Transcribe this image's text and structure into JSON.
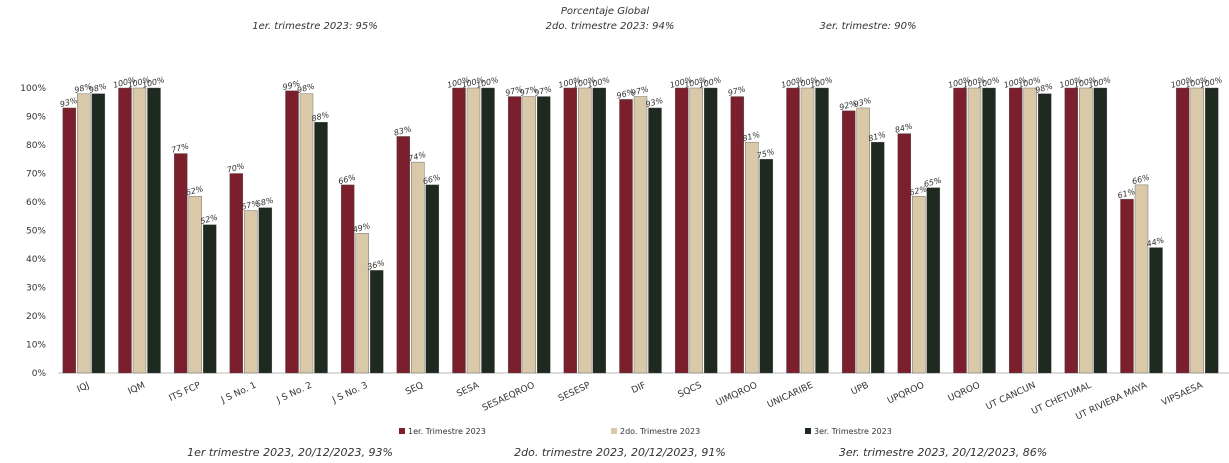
{
  "header": {
    "subtitle": "Porcentaje Global",
    "q1_summary": "1er. trimestre 2023: 95%",
    "q2_summary": "2do. trimestre 2023: 94%",
    "q3_summary": "3er. trimestre: 90%"
  },
  "footer": {
    "q1_note": "1er trimestre  2023,  20/12/2023, 93%",
    "q2_note": "2do. trimestre 2023, 20/12/2023, 91%",
    "q3_note": "3er. trimestre 2023, 20/12/2023, 86%"
  },
  "chart_data": {
    "type": "bar",
    "categories": [
      "IQJ",
      "IQM",
      "ITS FCP",
      "J S No. 1",
      "J S No. 2",
      "J S No. 3",
      "SEQ",
      "SESA",
      "SESAEQROO",
      "SESESP",
      "DIF",
      "SQCS",
      "UIMQROO",
      "UNICARIBE",
      "UPB",
      "UPQROO",
      "UQROO",
      "UT CANCUN",
      "UT CHETUMAL",
      "UT RIVIERA MAYA",
      "VIPSAESA"
    ],
    "series": [
      {
        "name": "1er. Trimestre 2023",
        "color": "#7a1f2b",
        "values": [
          93,
          100,
          77,
          70,
          99,
          66,
          83,
          100,
          97,
          100,
          96,
          100,
          97,
          100,
          92,
          84,
          100,
          100,
          100,
          61,
          100
        ],
        "labels": [
          "93%",
          "100%",
          "77%",
          "70%",
          "99%",
          "66%",
          "83%",
          "100%",
          "97%",
          "100%",
          "96%",
          "100%",
          "97%",
          "100%",
          "92%",
          "84%",
          "100%",
          "100%",
          "100%",
          "61%",
          "100%"
        ]
      },
      {
        "name": "2do. Trimestre 2023",
        "color": "#d9c9a8",
        "values": [
          98,
          100,
          62,
          57,
          98,
          49,
          74,
          100,
          97,
          100,
          97,
          100,
          81,
          100,
          93,
          62,
          100,
          100,
          100,
          66,
          100
        ],
        "labels": [
          "98%",
          "100%",
          "62%",
          "57%",
          "98%",
          "49%",
          "74%",
          "100%",
          "97%",
          "100%",
          "97%",
          "100%",
          "81%",
          "100%",
          "93%",
          "62%",
          "100%",
          "100%",
          "100%",
          "66%",
          "100%"
        ]
      },
      {
        "name": "3er. Trimestre 2023",
        "color": "#1e2a1f",
        "values": [
          98,
          100,
          52,
          58,
          88,
          36,
          66,
          100,
          97,
          100,
          93,
          100,
          75,
          100,
          81,
          65,
          100,
          98,
          100,
          44,
          100
        ],
        "labels": [
          "98%",
          "100%",
          "52%",
          "58%",
          "88%",
          "36%",
          "66%",
          "100%",
          "97%",
          "100%",
          "93%",
          "100%",
          "75%",
          "100%",
          "81%",
          "65%",
          "100%",
          "98%",
          "100%",
          "44%",
          "100%"
        ]
      }
    ],
    "yticks": [
      "0%",
      "10%",
      "20%",
      "30%",
      "40%",
      "50%",
      "60%",
      "70%",
      "80%",
      "90%",
      "100%"
    ],
    "ylim": [
      0,
      100
    ],
    "legend_position": "bottom",
    "grid": false
  }
}
